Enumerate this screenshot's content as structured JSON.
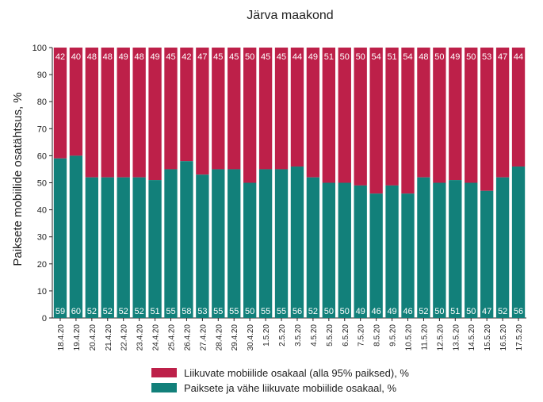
{
  "chart_data": {
    "type": "bar",
    "stacked": true,
    "title": "Järva maakond",
    "xlabel": "",
    "ylabel": "Paiksete mobiilide osatähtsus, %",
    "ylim": [
      0,
      100
    ],
    "yticks": [
      0,
      10,
      20,
      30,
      40,
      50,
      60,
      70,
      80,
      90,
      100
    ],
    "grid": false,
    "legend_position": "bottom",
    "categories": [
      "18.4.20",
      "19.4.20",
      "20.4.20",
      "21.4.20",
      "22.4.20",
      "23.4.20",
      "24.4.20",
      "25.4.20",
      "26.4.20",
      "27.4.20",
      "28.4.20",
      "29.4.20",
      "30.4.20",
      "1.5.20",
      "2.5.20",
      "3.5.20",
      "4.5.20",
      "5.5.20",
      "6.5.20",
      "7.5.20",
      "8.5.20",
      "9.5.20",
      "10.5.20",
      "11.5.20",
      "12.5.20",
      "13.5.20",
      "14.5.20",
      "15.5.20",
      "16.5.20",
      "17.5.20"
    ],
    "series": [
      {
        "name": "Paiksete ja vähe liikuvate mobiilide osakaal, %",
        "color": "#12807a",
        "values": [
          59,
          60,
          52,
          52,
          52,
          52,
          51,
          55,
          58,
          53,
          55,
          55,
          50,
          55,
          55,
          56,
          52,
          50,
          50,
          49,
          46,
          49,
          46,
          52,
          50,
          51,
          50,
          47,
          52,
          56
        ]
      },
      {
        "name": "Liikuvate mobiilide osakaal (alla 95% paiksed), %",
        "color": "#bd2049",
        "values": [
          42,
          40,
          48,
          48,
          49,
          48,
          49,
          45,
          42,
          47,
          45,
          45,
          50,
          45,
          45,
          44,
          49,
          51,
          50,
          50,
          54,
          51,
          54,
          48,
          50,
          49,
          50,
          53,
          47,
          44
        ]
      }
    ],
    "legend": [
      {
        "label": "Liikuvate mobiilide osakaal (alla 95% paiksed), %",
        "color": "#bd2049"
      },
      {
        "label": "Paiksete ja vähe liikuvate mobiilide osakaal, %",
        "color": "#12807a"
      }
    ]
  }
}
